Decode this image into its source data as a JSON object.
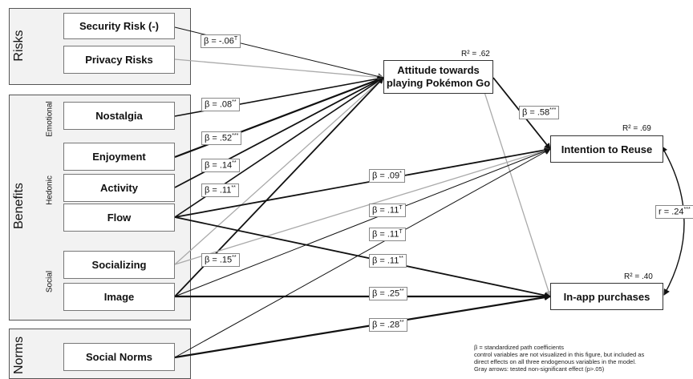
{
  "groups": {
    "risks": "Risks",
    "benefits": "Benefits",
    "norms": "Norms",
    "emotional": "Emotional",
    "hedonic": "Hedonic",
    "social": "Social"
  },
  "constructs": {
    "security_risk": "Security Risk (-)",
    "privacy_risks": "Privacy Risks",
    "nostalgia": "Nostalgia",
    "enjoyment": "Enjoyment",
    "activity": "Activity",
    "flow": "Flow",
    "socializing": "Socializing",
    "image": "Image",
    "social_norms": "Social Norms"
  },
  "outcomes": {
    "attitude_line1": "Attitude towards",
    "attitude_line2": "playing Pokémon Go",
    "intention": "Intention to Reuse",
    "inapp": "In-app purchases"
  },
  "r_squared": {
    "attitude": "R² = .62",
    "intention": "R² = .69",
    "inapp": "R² = .40"
  },
  "coefficients": {
    "security": {
      "value": "β = -.06",
      "sig": "T"
    },
    "nostalgia": {
      "value": "β = .08",
      "sig": "**"
    },
    "enjoyment": {
      "value": "β = .52",
      "sig": "***"
    },
    "activity": {
      "value": "β = .14",
      "sig": "**"
    },
    "flow": {
      "value": "β = .11",
      "sig": "**"
    },
    "image": {
      "value": "β = .15",
      "sig": "**"
    },
    "attitude_intention": {
      "value": "β = .58",
      "sig": "***"
    },
    "flow_intention": {
      "value": "β = .09",
      "sig": "*"
    },
    "c1": {
      "value": "β = .11",
      "sig": "T"
    },
    "c2": {
      "value": "β = .11",
      "sig": "T"
    },
    "flow_inapp": {
      "value": "β = .11",
      "sig": "**"
    },
    "image_inapp": {
      "value": "β = .25",
      "sig": "**"
    },
    "norms_inapp": {
      "value": "β = .28",
      "sig": "**"
    },
    "correlation": {
      "value": "r = .24",
      "sig": "***"
    }
  },
  "note": [
    "β = standardized path coefficients",
    "control variables are not visualized in this figure, but included as",
    "direct effects on all three endogenous variables in the model.",
    "Gray arrows: tested non-significant effect (p>.05)"
  ]
}
